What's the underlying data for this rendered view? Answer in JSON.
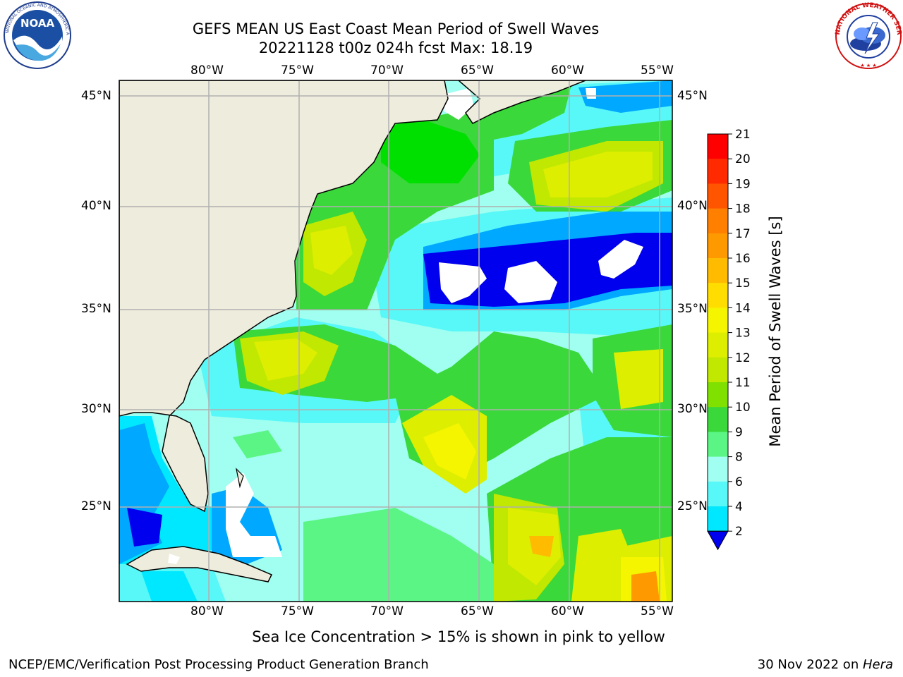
{
  "header": {
    "title_line1": "GEFS MEAN US East Coast Mean Period of Swell Waves",
    "title_line2": "20221128 t00z 024h fcst   Max: 18.19"
  },
  "logos": {
    "left": {
      "name": "NOAA",
      "ring_text": "NATIONAL OCEANIC AND ATMOSPHERIC ADMINISTRATION · U.S. DEPARTMENT OF COMMERCE"
    },
    "right": {
      "name": "NATIONAL WEATHER SERVICE"
    }
  },
  "map": {
    "lon_labels": [
      "80°W",
      "75°W",
      "70°W",
      "65°W",
      "60°W",
      "55°W"
    ],
    "lat_labels": [
      "45°N",
      "40°N",
      "35°N",
      "30°N",
      "25°N"
    ],
    "land_color": "#eeecdc",
    "grid_color": "#b0b0b0"
  },
  "colorbar": {
    "label": "Mean Period of Swell Waves [s]",
    "ticks": [
      "21",
      "20",
      "19",
      "18",
      "17",
      "16",
      "15",
      "14",
      "13",
      "12",
      "11",
      "10",
      "9",
      "8",
      "6",
      "4",
      "2"
    ],
    "colors": [
      "#ff0000",
      "#ff2a00",
      "#ff5500",
      "#ff7f00",
      "#ff9900",
      "#ffbb00",
      "#ffdd00",
      "#f5f500",
      "#ddee00",
      "#c0e800",
      "#80e000",
      "#3ad83a",
      "#5af585",
      "#a0fff0",
      "#58f8f8",
      "#00e8ff",
      "#00a8ff",
      "#0070ff",
      "#0000ee"
    ]
  },
  "sea_ice_note": "Sea Ice Concentration > 15% is shown in pink to yellow",
  "footer": {
    "left": "NCEP/EMC/Verification Post Processing Product Generation Branch",
    "right_date": "30 Nov 2022 on ",
    "right_machine": "Hera"
  }
}
